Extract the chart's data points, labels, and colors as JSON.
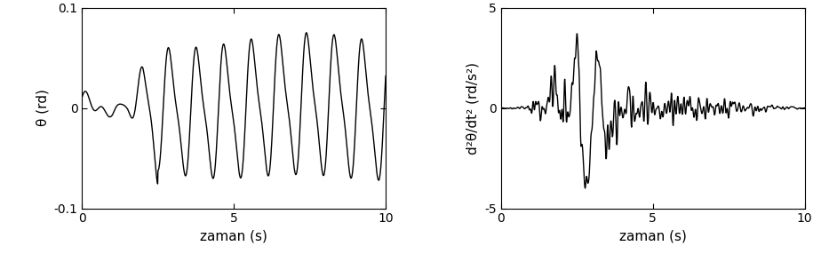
{
  "xlim": [
    0,
    10
  ],
  "ylim1": [
    -0.1,
    0.1
  ],
  "ylim2": [
    -5,
    5
  ],
  "yticks1": [
    -0.1,
    0,
    0.1
  ],
  "yticks2": [
    -5,
    0,
    5
  ],
  "xticks": [
    0,
    5,
    10
  ],
  "xlabel": "zaman (s)",
  "ylabel1": "θ (rd)",
  "ylabel2": "d²θ/dt² (rd/s²)",
  "line_color": "#000000",
  "bg_color": "#ffffff",
  "linewidth": 1.0
}
